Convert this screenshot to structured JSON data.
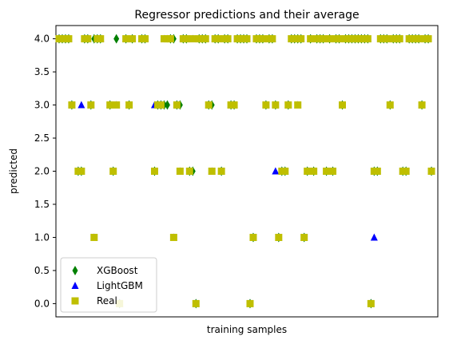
{
  "chart_data": {
    "type": "scatter",
    "title": "Regressor predictions and their average",
    "xlabel": "training samples",
    "ylabel": "predicted",
    "ylim": [
      -0.2,
      4.2
    ],
    "xlim": [
      0,
      120
    ],
    "yticks": [
      0.0,
      0.5,
      1.0,
      1.5,
      2.0,
      2.5,
      3.0,
      3.5,
      4.0
    ],
    "ytick_labels": [
      "0.0",
      "0.5",
      "1.0",
      "1.5",
      "2.0",
      "2.5",
      "3.0",
      "3.5",
      "4.0"
    ],
    "xticks_visible": false,
    "legend_position": "lower-left",
    "series": [
      {
        "name": "XGBoost",
        "marker": "diamond",
        "color": "#008000",
        "x": [
          1,
          2,
          3,
          4,
          5,
          7,
          8,
          9,
          10,
          11,
          12,
          13,
          14,
          17,
          18,
          19,
          20,
          22,
          23,
          24,
          27,
          28,
          31,
          32,
          33,
          34,
          35,
          36,
          37,
          38,
          39,
          40,
          41,
          42,
          43,
          44,
          45,
          46,
          47,
          48,
          49,
          50,
          51,
          52,
          53,
          54,
          55,
          56,
          57,
          58,
          59,
          60,
          61,
          62,
          63,
          64,
          65,
          66,
          67,
          68,
          69,
          70,
          71,
          72,
          73,
          74,
          75,
          76,
          77,
          78,
          79,
          80,
          81,
          82,
          83,
          84,
          85,
          86,
          87,
          88,
          89,
          90,
          91,
          92,
          93,
          94,
          95,
          96,
          97,
          98,
          99,
          100,
          101,
          102,
          103,
          104,
          105,
          106,
          107,
          108,
          109,
          110,
          111,
          112,
          113,
          114,
          115,
          116,
          117,
          118
        ],
        "y": [
          4,
          4,
          4,
          4,
          3,
          2,
          2,
          4,
          4,
          3,
          4,
          4,
          4,
          3,
          2,
          4,
          0,
          4,
          3,
          4,
          4,
          4,
          2,
          3,
          3,
          3,
          3,
          4,
          4,
          3,
          3,
          4,
          4,
          2,
          2,
          0,
          4,
          4,
          4,
          3,
          3,
          4,
          4,
          2,
          4,
          4,
          3,
          3,
          4,
          4,
          4,
          4,
          0,
          1,
          4,
          4,
          4,
          3,
          4,
          4,
          3,
          1,
          2,
          2,
          3,
          4,
          4,
          4,
          4,
          1,
          2,
          4,
          2,
          4,
          4,
          4,
          2,
          4,
          2,
          4,
          4,
          3,
          4,
          4,
          4,
          4,
          4,
          4,
          4,
          4,
          0,
          2,
          2,
          4,
          4,
          4,
          3,
          4,
          4,
          4,
          2,
          2,
          4,
          4,
          4,
          4,
          3,
          4,
          4,
          2
        ],
        "values_note": "approximate per-sample predictions"
      },
      {
        "name": "LightGBM",
        "marker": "triangle",
        "color": "#0000ff",
        "x": [
          1,
          2,
          3,
          4,
          5,
          7,
          8,
          9,
          10,
          11,
          12,
          13,
          14,
          17,
          18,
          19,
          20,
          22,
          23,
          24,
          27,
          28,
          31,
          32,
          33,
          34,
          35,
          36,
          37,
          38,
          39,
          40,
          41,
          42,
          43,
          44,
          45,
          46,
          47,
          48,
          49,
          50,
          51,
          52,
          53,
          54,
          55,
          56,
          57,
          58,
          59,
          60,
          61,
          62,
          63,
          64,
          65,
          66,
          67,
          68,
          69,
          70,
          71,
          72,
          73,
          74,
          75,
          76,
          77,
          78,
          79,
          80,
          81,
          82,
          83,
          84,
          85,
          86,
          87,
          88,
          89,
          90,
          91,
          92,
          93,
          94,
          95,
          96,
          97,
          98,
          99,
          100,
          101,
          102,
          103,
          104,
          105,
          106,
          107,
          108,
          109,
          110,
          111,
          112,
          113,
          114,
          115,
          116,
          117,
          118
        ],
        "y": [
          4,
          4,
          4,
          4,
          3,
          2,
          3,
          4,
          4,
          3,
          1,
          4,
          4,
          3,
          2,
          3,
          0,
          4,
          3,
          4,
          4,
          4,
          3,
          3,
          3,
          4,
          4,
          4,
          1,
          3,
          2,
          4,
          4,
          2,
          4,
          0,
          4,
          4,
          4,
          3,
          2,
          4,
          4,
          2,
          4,
          4,
          3,
          3,
          4,
          4,
          4,
          4,
          0,
          1,
          4,
          4,
          4,
          3,
          4,
          4,
          2,
          1,
          2,
          2,
          3,
          4,
          4,
          3,
          4,
          1,
          2,
          4,
          2,
          4,
          4,
          4,
          2,
          4,
          2,
          4,
          4,
          3,
          4,
          4,
          4,
          4,
          4,
          4,
          4,
          4,
          0,
          1,
          2,
          4,
          4,
          4,
          3,
          4,
          4,
          4,
          2,
          2,
          4,
          4,
          4,
          4,
          3,
          4,
          4,
          2
        ],
        "values_note": "approximate per-sample predictions"
      },
      {
        "name": "Real",
        "marker": "square",
        "color": "#bfbf00",
        "x": [
          1,
          2,
          3,
          4,
          5,
          7,
          8,
          9,
          10,
          11,
          12,
          13,
          14,
          17,
          18,
          19,
          20,
          22,
          23,
          24,
          27,
          28,
          31,
          32,
          33,
          34,
          35,
          36,
          37,
          38,
          39,
          40,
          41,
          42,
          43,
          44,
          45,
          46,
          47,
          48,
          49,
          50,
          51,
          52,
          53,
          54,
          55,
          56,
          57,
          58,
          59,
          60,
          61,
          62,
          63,
          64,
          65,
          66,
          67,
          68,
          69,
          70,
          71,
          72,
          73,
          74,
          75,
          76,
          77,
          78,
          79,
          80,
          81,
          82,
          83,
          84,
          85,
          86,
          87,
          88,
          89,
          90,
          91,
          92,
          93,
          94,
          95,
          96,
          97,
          98,
          99,
          100,
          101,
          102,
          103,
          104,
          105,
          106,
          107,
          108,
          109,
          110,
          111,
          112,
          113,
          114,
          115,
          116,
          117,
          118
        ],
        "y": [
          4,
          4,
          4,
          4,
          3,
          2,
          2,
          4,
          4,
          3,
          1,
          4,
          4,
          3,
          2,
          3,
          0,
          4,
          3,
          4,
          4,
          4,
          2,
          3,
          3,
          4,
          4,
          4,
          1,
          3,
          2,
          4,
          4,
          2,
          4,
          0,
          4,
          4,
          4,
          3,
          2,
          4,
          4,
          2,
          4,
          4,
          3,
          3,
          4,
          4,
          4,
          4,
          0,
          1,
          4,
          4,
          4,
          3,
          4,
          4,
          3,
          1,
          2,
          2,
          3,
          4,
          4,
          3,
          4,
          1,
          2,
          4,
          2,
          4,
          4,
          4,
          2,
          4,
          2,
          4,
          4,
          3,
          4,
          4,
          4,
          4,
          4,
          4,
          4,
          4,
          0,
          2,
          2,
          4,
          4,
          4,
          3,
          4,
          4,
          4,
          2,
          2,
          4,
          4,
          4,
          4,
          3,
          4,
          4,
          2
        ],
        "values_note": "approximate per-sample values"
      }
    ]
  }
}
